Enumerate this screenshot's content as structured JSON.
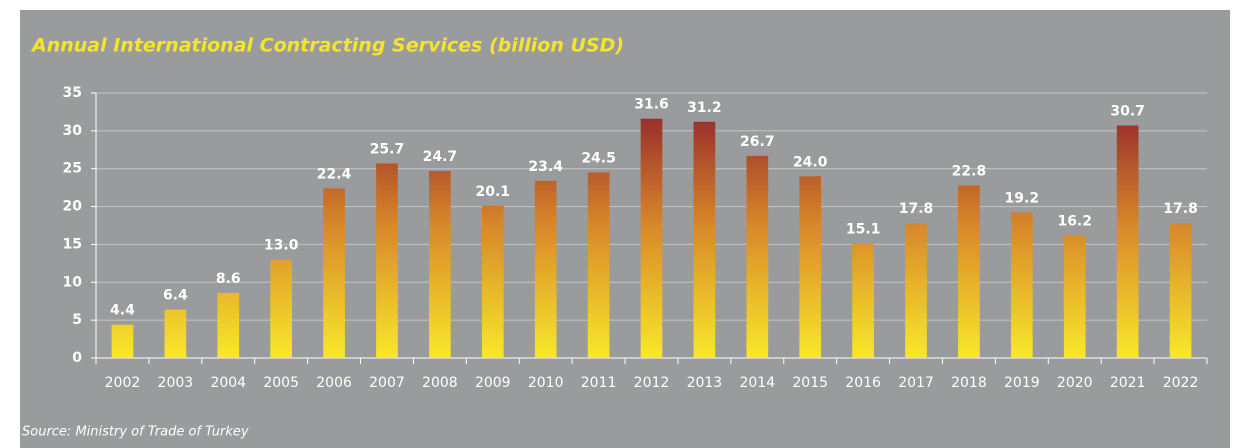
{
  "chart_data": {
    "type": "bar",
    "title": "Annual International Contracting Services (billion USD)",
    "source": "Source: Ministry of Trade of Turkey",
    "categories": [
      "2002",
      "2003",
      "2004",
      "2005",
      "2006",
      "2007",
      "2008",
      "2009",
      "2010",
      "2011",
      "2012",
      "2013",
      "2014",
      "2015",
      "2016",
      "2017",
      "2018",
      "2019",
      "2020",
      "2021",
      "2022"
    ],
    "values": [
      4.4,
      6.4,
      8.6,
      13.0,
      22.4,
      25.7,
      24.7,
      20.1,
      23.4,
      24.5,
      31.6,
      31.2,
      26.7,
      24.0,
      15.1,
      17.8,
      22.8,
      19.2,
      16.2,
      30.7,
      17.8
    ],
    "value_labels": [
      "4.4",
      "6.4",
      "8.6",
      "13.0",
      "22.4",
      "25.7",
      "24.7",
      "20.1",
      "23.4",
      "24.5",
      "31.6",
      "31.2",
      "26.7",
      "24.0",
      "15.1",
      "17.8",
      "22.8",
      "19.2",
      "16.2",
      "30.7",
      "17.8"
    ],
    "colors": [
      "#f8e82a",
      "#d8882a",
      "#8a1a2c"
    ],
    "ylim": [
      0,
      35
    ],
    "yticks": [
      0,
      5,
      10,
      15,
      20,
      25,
      30,
      35
    ],
    "grid": true
  }
}
